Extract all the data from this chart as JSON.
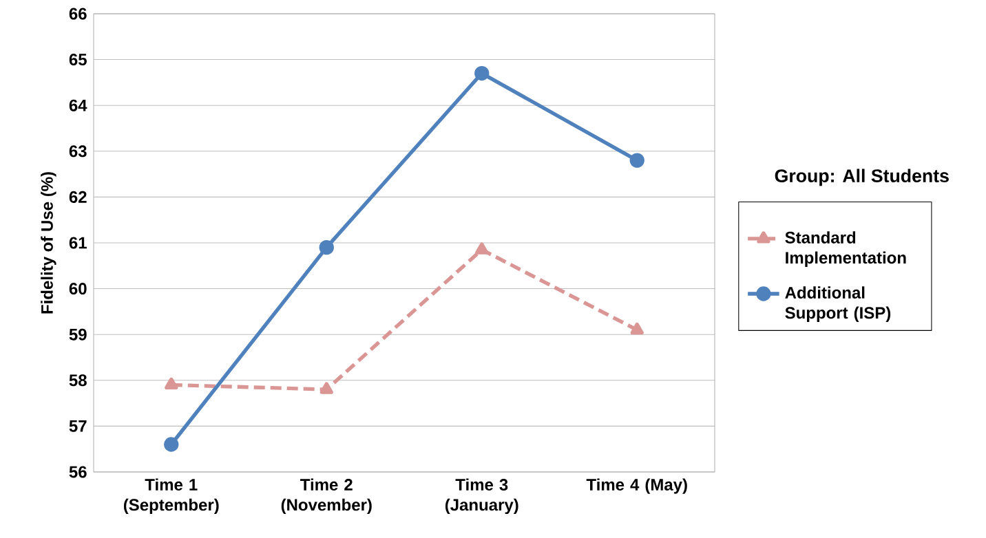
{
  "chart_data": {
    "type": "line",
    "ylabel": "Fidelity of Use (%)",
    "legend_title": "Group: All Students",
    "legend": "right",
    "grid": "y",
    "categories": [
      "Time 1 (September)",
      "Time 2 (November)",
      "Time 3 (January)",
      "Time 4 (May)"
    ],
    "ylim": [
      56,
      66
    ],
    "yticks": [
      56,
      57,
      58,
      59,
      60,
      61,
      62,
      63,
      64,
      65,
      66
    ],
    "series": [
      {
        "name": "Standard Implementation",
        "color": "#da9694",
        "marker": "triangle",
        "line_style": "dashed",
        "values": [
          57.9,
          57.8,
          60.85,
          59.1
        ]
      },
      {
        "name": "Additional Support (ISP)",
        "color": "#4f81bd",
        "marker": "circle",
        "line_style": "solid",
        "values": [
          56.6,
          60.9,
          64.7,
          62.8
        ]
      }
    ]
  }
}
